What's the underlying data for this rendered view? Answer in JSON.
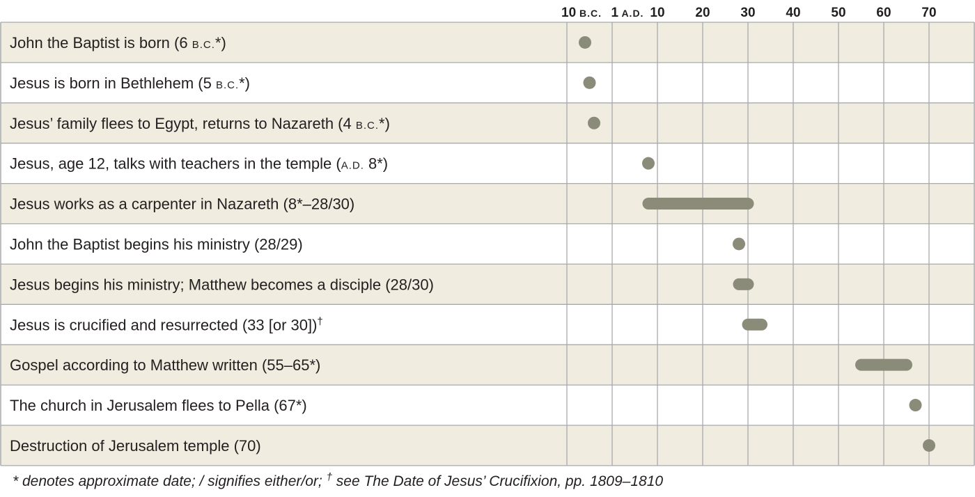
{
  "chart_data": {
    "type": "timeline",
    "axis": {
      "ticks": [
        {
          "num": "10",
          "era": "B.C.",
          "year": -10
        },
        {
          "num": "1",
          "era": "A.D.",
          "year": 1
        },
        {
          "num": "10",
          "era": "",
          "year": 10
        },
        {
          "num": "20",
          "era": "",
          "year": 20
        },
        {
          "num": "30",
          "era": "",
          "year": 30
        },
        {
          "num": "40",
          "era": "",
          "year": 40
        },
        {
          "num": "50",
          "era": "",
          "year": 50
        },
        {
          "num": "60",
          "era": "",
          "year": 60
        },
        {
          "num": "70",
          "era": "",
          "year": 70
        }
      ]
    },
    "events": [
      {
        "parts": [
          {
            "t": "John the Baptist is born (6 "
          },
          {
            "t": "B.C.",
            "sc": true
          },
          {
            "t": "*)"
          }
        ],
        "start": -6,
        "end": -6
      },
      {
        "parts": [
          {
            "t": "Jesus is born in Bethlehem (5 "
          },
          {
            "t": "B.C.",
            "sc": true
          },
          {
            "t": "*)"
          }
        ],
        "start": -5,
        "end": -5
      },
      {
        "parts": [
          {
            "t": "Jesus’ family flees to Egypt, returns to Nazareth (4 "
          },
          {
            "t": "B.C.",
            "sc": true
          },
          {
            "t": "*)"
          }
        ],
        "start": -4,
        "end": -4
      },
      {
        "parts": [
          {
            "t": "Jesus, age 12, talks with teachers in the temple ("
          },
          {
            "t": "A.D.",
            "sc": true
          },
          {
            "t": " 8*)"
          }
        ],
        "start": 8,
        "end": 8
      },
      {
        "parts": [
          {
            "t": "Jesus works as a carpenter in Nazareth (8*–28/30)"
          }
        ],
        "start": 8,
        "end": 30
      },
      {
        "parts": [
          {
            "t": "John the Baptist begins his ministry (28/29)"
          }
        ],
        "start": 28,
        "end": 28
      },
      {
        "parts": [
          {
            "t": "Jesus begins his ministry; Matthew becomes a disciple (28/30)"
          }
        ],
        "start": 28,
        "end": 30
      },
      {
        "parts": [
          {
            "t": "Jesus is crucified and resurrected (33 [or 30])"
          },
          {
            "t": "†",
            "sup": true
          }
        ],
        "start": 30,
        "end": 33
      },
      {
        "parts": [
          {
            "t": "Gospel according to Matthew written (55–65*)"
          }
        ],
        "start": 55,
        "end": 65
      },
      {
        "parts": [
          {
            "t": "The church in Jerusalem flees to Pella (67*)"
          }
        ],
        "start": 67,
        "end": 67
      },
      {
        "parts": [
          {
            "t": "Destruction of Jerusalem temple (70)"
          }
        ],
        "start": 70,
        "end": 70
      }
    ]
  },
  "footnote": {
    "part1": "* denotes approximate date; / signifies either/or; ",
    "dagger": "†",
    "part2": " see The Date of Jesus’ Crucifixion, pp. 1809–1810"
  },
  "colors": {
    "band": "#f0ecdf",
    "plain": "#ffffff",
    "grid": "#a7a9ac",
    "marker": "#8b8b7a",
    "text": "#231f20"
  }
}
